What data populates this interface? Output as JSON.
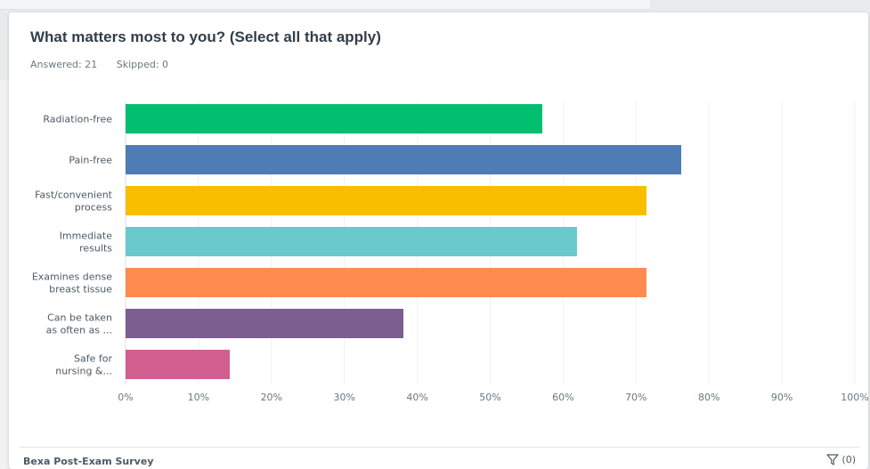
{
  "chart_data": {
    "type": "bar",
    "orientation": "horizontal",
    "title": "What matters most to you? (Select all that apply)",
    "categories": [
      [
        "Radiation-free"
      ],
      [
        "Pain-free"
      ],
      [
        "Fast/convenient",
        "process"
      ],
      [
        "Immediate",
        "results"
      ],
      [
        "Examines dense",
        "breast tissue"
      ],
      [
        "Can be taken",
        "as often as ..."
      ],
      [
        "Safe for",
        "nursing &..."
      ]
    ],
    "values": [
      57.14,
      76.19,
      71.43,
      61.9,
      71.43,
      38.1,
      14.29
    ],
    "colors": [
      "#00bf6f",
      "#507cb6",
      "#f9be00",
      "#6bc8cd",
      "#ff8b4f",
      "#7d5e90",
      "#d25f90"
    ],
    "xlim": [
      0,
      100
    ],
    "x_ticks": [
      "0%",
      "10%",
      "20%",
      "30%",
      "40%",
      "50%",
      "60%",
      "70%",
      "80%",
      "90%",
      "100%"
    ],
    "grid": true
  },
  "meta": {
    "answered": "Answered: 21",
    "skipped": "Skipped: 0"
  },
  "footer": {
    "survey_name": "Bexa Post-Exam Survey",
    "filter_count": "(0)"
  }
}
